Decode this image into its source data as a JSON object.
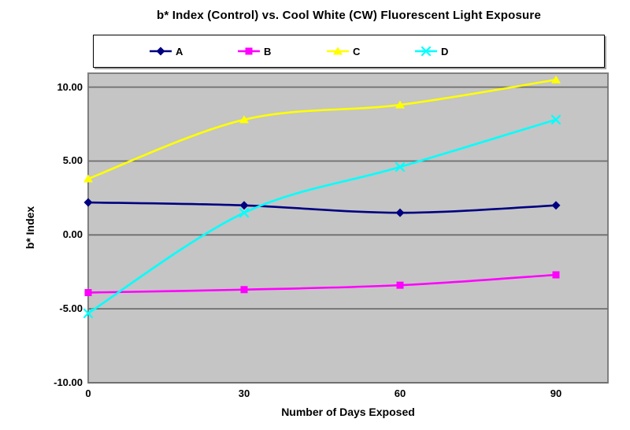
{
  "title": "b* Index (Control) vs. Cool White (CW) Fluorescent Light Exposure",
  "chart_data": {
    "type": "line",
    "smoothed": true,
    "x": [
      0,
      30,
      60,
      90
    ],
    "x_tick_labels": [
      "0",
      "30",
      "60",
      "90"
    ],
    "xlabel": "Number of Days Exposed",
    "ylabel": "b* Index",
    "xlim": [
      0,
      100
    ],
    "ylim": [
      -10,
      10.94
    ],
    "y_tick_values": [
      10,
      5,
      0,
      -5,
      -10
    ],
    "y_tick_labels": [
      "10.00",
      "5.00",
      "0.00",
      "-5.00",
      "-10.00"
    ],
    "grid": "horizontal-major",
    "legend_position": "top-boxed",
    "colors": {
      "plot_bg": "#c5c5c5",
      "grid_line": "#6e6e6e",
      "plot_border": "#808080",
      "text": "#000000"
    },
    "series": [
      {
        "name": "A",
        "marker": "diamond",
        "color": "#000080",
        "values": [
          2.2,
          2.0,
          1.5,
          2.0
        ]
      },
      {
        "name": "B",
        "marker": "square",
        "color": "#ff00ff",
        "values": [
          -3.9,
          -3.7,
          -3.4,
          -2.7
        ]
      },
      {
        "name": "C",
        "marker": "triangle",
        "color": "#ffff00",
        "values": [
          3.8,
          7.8,
          8.8,
          10.5
        ]
      },
      {
        "name": "D",
        "marker": "x",
        "color": "#00ffff",
        "values": [
          -5.3,
          1.5,
          4.6,
          7.8
        ]
      }
    ]
  }
}
